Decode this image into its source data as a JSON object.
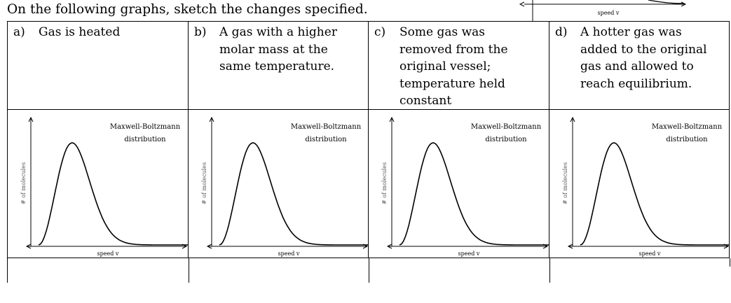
{
  "instructions": "On the following graphs, sketch the changes specified.",
  "top_fragment": {
    "axis_label": "speed v"
  },
  "panels": [
    {
      "letter": "a)",
      "lines": [
        "Gas is heated"
      ],
      "graph": {
        "title_line1": "Maxwell-Boltzmann",
        "title_line2": "distribution",
        "xlabel": "speed v",
        "ylabel": "# of molecules"
      }
    },
    {
      "letter": "b)",
      "lines": [
        "A gas with a higher",
        "molar mass at the",
        "same temperature."
      ],
      "graph": {
        "title_line1": "Maxwell-Boltzmann",
        "title_line2": "distribution",
        "xlabel": "speed v",
        "ylabel": "# of molecules"
      }
    },
    {
      "letter": "c)",
      "lines": [
        "Some gas was",
        "removed from the",
        "original vessel;",
        "temperature held",
        "constant"
      ],
      "graph": {
        "title_line1": "Maxwell-Boltzmann",
        "title_line2": "distribution",
        "xlabel": "speed v",
        "ylabel": "# of molecules"
      }
    },
    {
      "letter": "d)",
      "lines": [
        "A hotter gas was",
        "added to the original",
        "gas and allowed to",
        "reach equilibrium."
      ],
      "graph": {
        "title_line1": "Maxwell-Boltzmann",
        "title_line2": "distribution",
        "xlabel": "speed v",
        "ylabel": "# of molecules"
      }
    }
  ]
}
